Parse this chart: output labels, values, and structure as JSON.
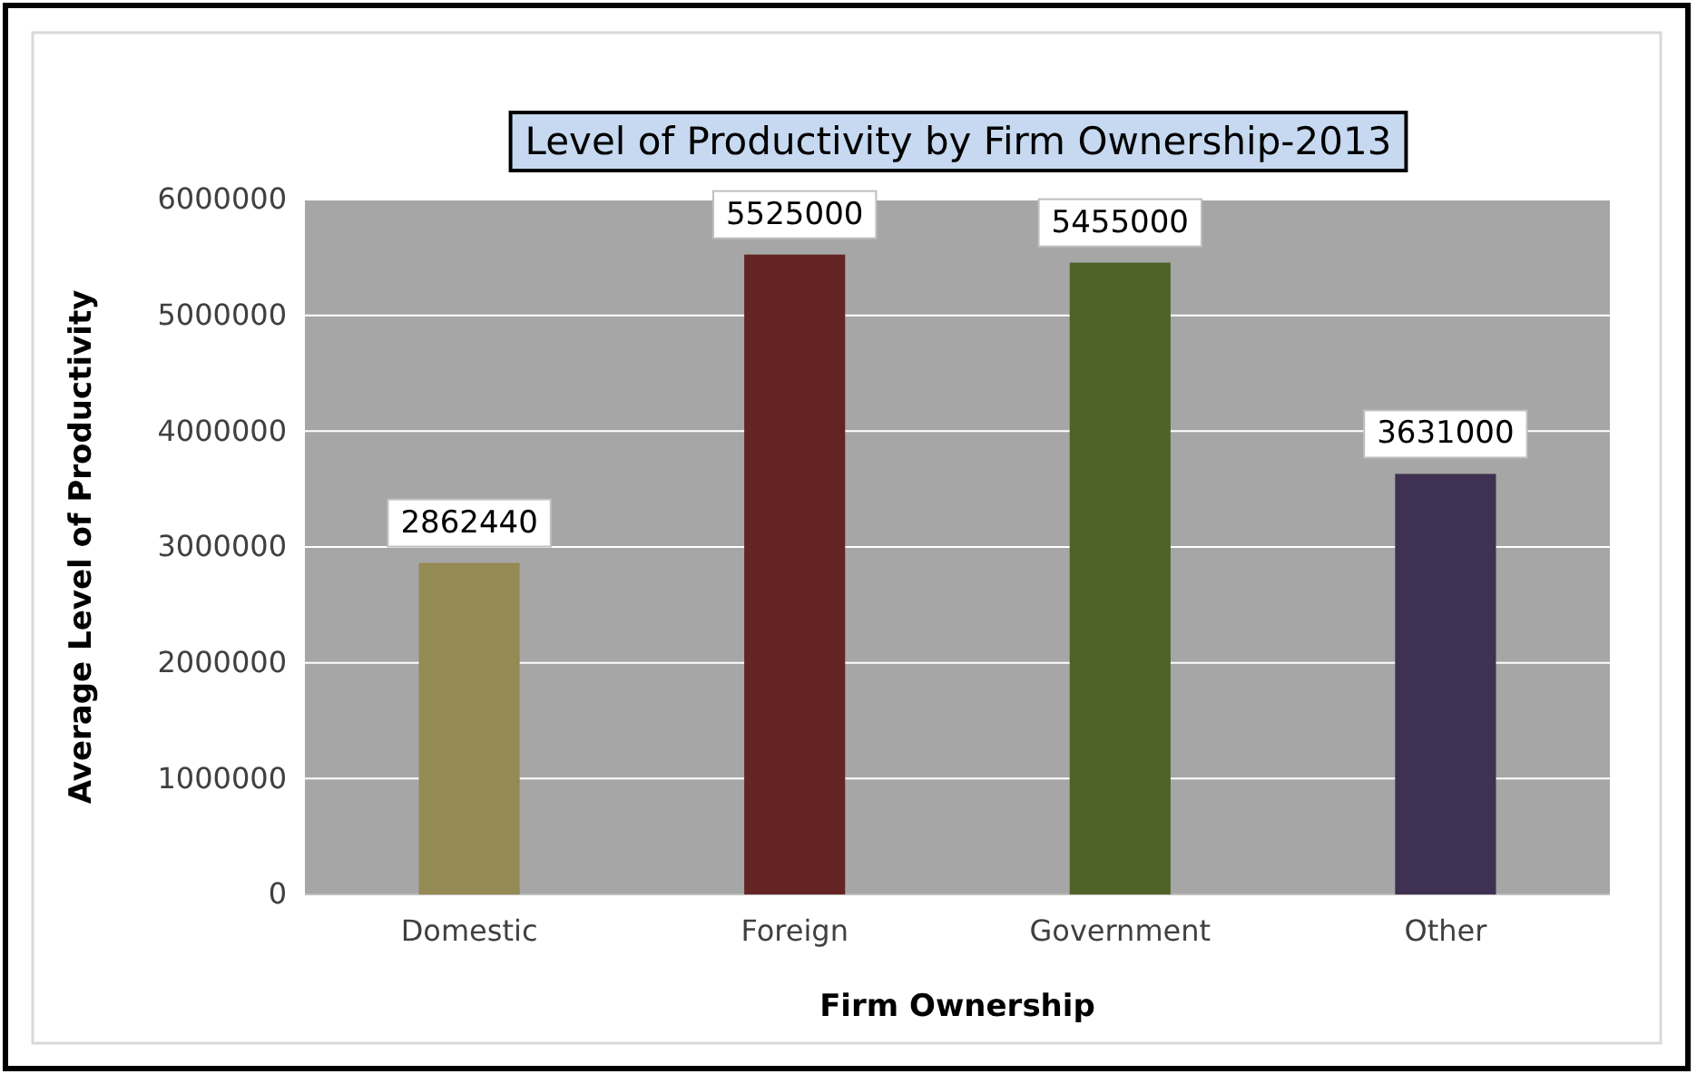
{
  "chart_data": {
    "type": "bar",
    "title": "Level of Productivity by Firm Ownership-2013",
    "xlabel": "Firm Ownership",
    "ylabel": "Average Level of Productivity",
    "categories": [
      "Domestic",
      "Foreign",
      "Government",
      "Other"
    ],
    "values": [
      2862440,
      5525000,
      5455000,
      3631000
    ],
    "colors": [
      "#948a54",
      "#632423",
      "#4f6228",
      "#3f3151"
    ],
    "ylim": [
      0,
      6000000
    ],
    "yticks": [
      0,
      1000000,
      2000000,
      3000000,
      4000000,
      5000000,
      6000000
    ],
    "grid": "y",
    "data_labels": true
  }
}
